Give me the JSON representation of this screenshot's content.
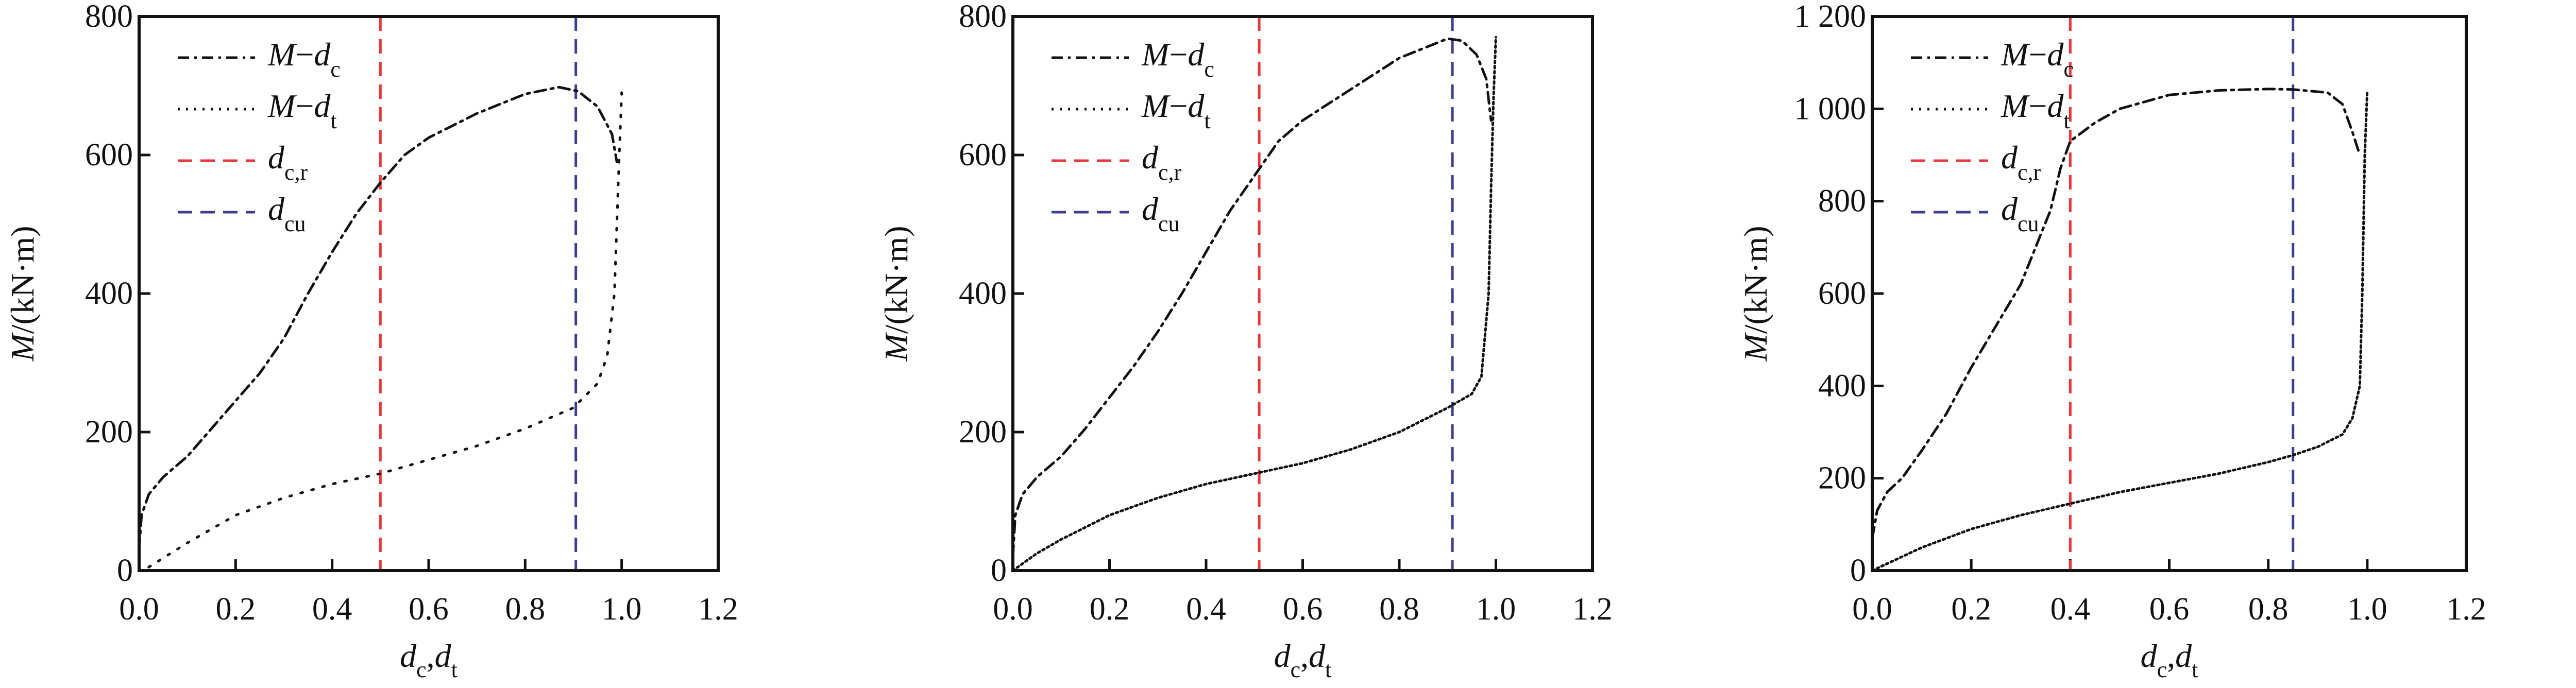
{
  "legend_labels": {
    "mdc": [
      "M",
      "−",
      "d",
      "c"
    ],
    "mdt": [
      "M",
      "−",
      "d",
      "t"
    ],
    "dcr": [
      "d",
      "c,r"
    ],
    "dcu": [
      "d",
      "cu"
    ]
  },
  "colors": {
    "curve": "#111111",
    "dcr": "#e8383d",
    "dcu": "#3a3f8f"
  },
  "chart_data": [
    {
      "type": "line",
      "xlabel": "dc,dt",
      "ylabel": "M/(kN·m)",
      "xlim": [
        0,
        1.2
      ],
      "ylim": [
        0,
        800
      ],
      "xticks": [
        "0.0",
        "0.2",
        "0.4",
        "0.6",
        "0.8",
        "1.0",
        "1.2"
      ],
      "yticks": [
        "0",
        "200",
        "400",
        "600",
        "800"
      ],
      "legend_position": "top-left",
      "series": [
        {
          "name": "M-dc",
          "style": "dashdot",
          "x": [
            0,
            0.005,
            0.02,
            0.05,
            0.1,
            0.15,
            0.2,
            0.25,
            0.3,
            0.35,
            0.4,
            0.45,
            0.5,
            0.55,
            0.6,
            0.7,
            0.8,
            0.87,
            0.91,
            0.95,
            0.98,
            0.99
          ],
          "y": [
            30,
            80,
            110,
            135,
            165,
            205,
            245,
            285,
            335,
            400,
            460,
            515,
            560,
            600,
            625,
            660,
            688,
            698,
            692,
            670,
            630,
            590
          ]
        },
        {
          "name": "M-dt",
          "style": "dotted",
          "x": [
            0.02,
            0.1,
            0.2,
            0.3,
            0.4,
            0.5,
            0.6,
            0.7,
            0.8,
            0.9,
            0.95,
            0.97,
            0.985,
            0.99,
            0.995,
            1.0
          ],
          "y": [
            5,
            40,
            80,
            105,
            125,
            140,
            160,
            180,
            205,
            235,
            270,
            310,
            400,
            500,
            600,
            690
          ]
        }
      ],
      "vlines": {
        "dcr": 0.5,
        "dcu": 0.905
      }
    },
    {
      "type": "line",
      "xlabel": "dc,dt",
      "ylabel": "M/(kN·m)",
      "xlim": [
        0,
        1.2
      ],
      "ylim": [
        0,
        800
      ],
      "xticks": [
        "0.0",
        "0.2",
        "0.4",
        "0.6",
        "0.8",
        "1.0",
        "1.2"
      ],
      "yticks": [
        "0",
        "200",
        "400",
        "600",
        "800"
      ],
      "legend_position": "top-left",
      "series": [
        {
          "name": "M-dc",
          "style": "dashdot",
          "x": [
            0,
            0.005,
            0.02,
            0.05,
            0.1,
            0.15,
            0.2,
            0.25,
            0.3,
            0.35,
            0.4,
            0.45,
            0.5,
            0.55,
            0.6,
            0.7,
            0.8,
            0.9,
            0.93,
            0.96,
            0.98,
            0.99
          ],
          "y": [
            20,
            80,
            110,
            135,
            165,
            205,
            250,
            295,
            345,
            400,
            460,
            520,
            570,
            620,
            650,
            695,
            740,
            768,
            765,
            745,
            710,
            650
          ]
        },
        {
          "name": "M-dt",
          "style": "dotted",
          "x": [
            0,
            0.05,
            0.1,
            0.2,
            0.3,
            0.4,
            0.5,
            0.6,
            0.7,
            0.8,
            0.9,
            0.95,
            0.97,
            0.985,
            0.99,
            0.995,
            1.0
          ],
          "y": [
            0,
            25,
            45,
            80,
            105,
            125,
            140,
            155,
            175,
            200,
            235,
            255,
            280,
            400,
            550,
            680,
            770
          ]
        }
      ],
      "vlines": {
        "dcr": 0.51,
        "dcu": 0.91
      }
    },
    {
      "type": "line",
      "xlabel": "dc,dt",
      "ylabel": "M/(kN·m)",
      "xlim": [
        0,
        1.2
      ],
      "ylim": [
        0,
        1200
      ],
      "xticks": [
        "0.0",
        "0.2",
        "0.4",
        "0.6",
        "0.8",
        "1.0",
        "1.2"
      ],
      "yticks": [
        "0",
        "200",
        "400",
        "600",
        "800",
        "1 000",
        "1 200"
      ],
      "legend_position": "top-left",
      "series": [
        {
          "name": "M-dc",
          "style": "dashdot",
          "x": [
            0,
            0.01,
            0.03,
            0.06,
            0.1,
            0.15,
            0.2,
            0.25,
            0.3,
            0.33,
            0.36,
            0.38,
            0.4,
            0.45,
            0.5,
            0.6,
            0.7,
            0.8,
            0.85,
            0.92,
            0.95,
            0.97,
            0.985
          ],
          "y": [
            70,
            130,
            170,
            200,
            260,
            340,
            440,
            530,
            620,
            700,
            780,
            870,
            930,
            970,
            1000,
            1030,
            1040,
            1043,
            1042,
            1035,
            1010,
            950,
            900
          ]
        },
        {
          "name": "M-dt",
          "style": "dotted",
          "x": [
            0,
            0.1,
            0.2,
            0.3,
            0.4,
            0.5,
            0.6,
            0.7,
            0.8,
            0.85,
            0.9,
            0.95,
            0.97,
            0.985,
            0.99,
            0.995,
            1.0
          ],
          "y": [
            0,
            50,
            90,
            120,
            145,
            170,
            190,
            210,
            235,
            250,
            268,
            295,
            330,
            400,
            600,
            900,
            1040
          ]
        }
      ],
      "vlines": {
        "dcr": 0.4,
        "dcu": 0.85
      }
    }
  ]
}
